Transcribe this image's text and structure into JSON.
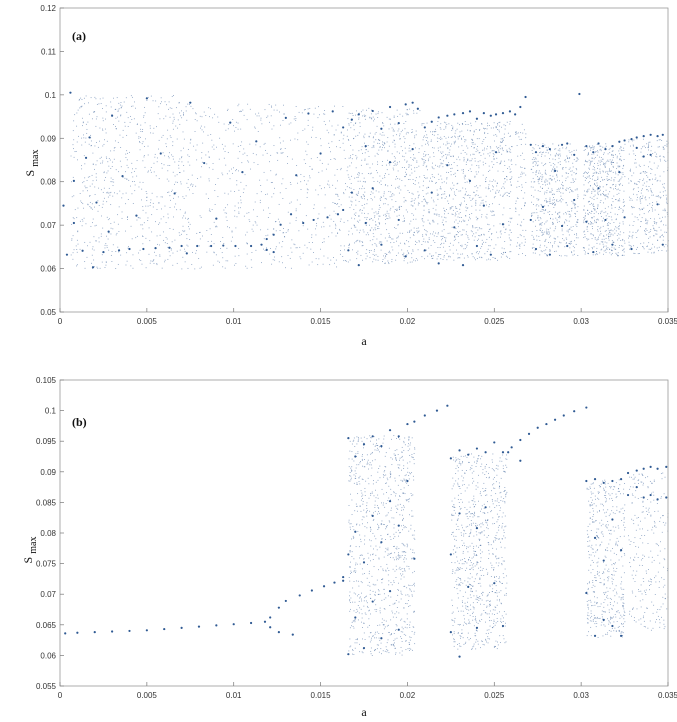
{
  "chart_data": [
    {
      "type": "scatter",
      "panel_label": "(a)",
      "xlabel": "a",
      "ylabel": "S",
      "ylabel_sub": "max",
      "xlim": [
        0,
        0.035
      ],
      "ylim": [
        0.05,
        0.12
      ],
      "xticks": [
        "0",
        "0.005",
        "0.01",
        "0.015",
        "0.02",
        "0.025",
        "0.03",
        "0.035"
      ],
      "yticks": [
        "0.05",
        "0.06",
        "0.07",
        "0.08",
        "0.09",
        "0.1",
        "0.11",
        "0.12"
      ],
      "color": "#2f5a93",
      "series": [
        {
          "values": [
            [
              0.0002,
              0.0745
            ],
            [
              0.0004,
              0.0632
            ],
            [
              0.0006,
              0.1005
            ],
            [
              0.0008,
              0.0705
            ],
            [
              0.0008,
              0.0802
            ],
            [
              0.0013,
              0.0641
            ],
            [
              0.0015,
              0.0855
            ],
            [
              0.0017,
              0.0902
            ],
            [
              0.0019,
              0.0603
            ],
            [
              0.0021,
              0.0752
            ],
            [
              0.0025,
              0.0638
            ],
            [
              0.0028,
              0.0685
            ],
            [
              0.003,
              0.0952
            ],
            [
              0.0034,
              0.0642
            ],
            [
              0.0036,
              0.0813
            ],
            [
              0.004,
              0.0645
            ],
            [
              0.0044,
              0.0722
            ],
            [
              0.0048,
              0.0645
            ],
            [
              0.005,
              0.0992
            ],
            [
              0.0055,
              0.0647
            ],
            [
              0.0058,
              0.0865
            ],
            [
              0.0063,
              0.0648
            ],
            [
              0.0066,
              0.0773
            ],
            [
              0.007,
              0.0652
            ],
            [
              0.0073,
              0.0635
            ],
            [
              0.0075,
              0.0982
            ],
            [
              0.0079,
              0.0652
            ],
            [
              0.0083,
              0.0843
            ],
            [
              0.0087,
              0.0652
            ],
            [
              0.009,
              0.0715
            ],
            [
              0.0094,
              0.0653
            ],
            [
              0.0098,
              0.0936
            ],
            [
              0.0101,
              0.0652
            ],
            [
              0.0105,
              0.0822
            ],
            [
              0.011,
              0.0652
            ],
            [
              0.0113,
              0.0893
            ],
            [
              0.0116,
              0.0655
            ],
            [
              0.0119,
              0.0668
            ],
            [
              0.0119,
              0.0643
            ],
            [
              0.0123,
              0.0678
            ],
            [
              0.0123,
              0.0638
            ],
            [
              0.0127,
              0.0701
            ],
            [
              0.013,
              0.0947
            ],
            [
              0.0133,
              0.0725
            ],
            [
              0.0136,
              0.0815
            ],
            [
              0.014,
              0.0705
            ],
            [
              0.0143,
              0.0957
            ],
            [
              0.0146,
              0.0712
            ],
            [
              0.015,
              0.0865
            ],
            [
              0.0154,
              0.0718
            ],
            [
              0.0157,
              0.0962
            ],
            [
              0.016,
              0.0725
            ],
            [
              0.0163,
              0.0925
            ],
            [
              0.0163,
              0.0735
            ],
            [
              0.0166,
              0.0642
            ],
            [
              0.0168,
              0.0943
            ],
            [
              0.0168,
              0.0775
            ],
            [
              0.0172,
              0.0955
            ],
            [
              0.0172,
              0.0608
            ],
            [
              0.0176,
              0.0882
            ],
            [
              0.0176,
              0.0705
            ],
            [
              0.018,
              0.0963
            ],
            [
              0.018,
              0.0785
            ],
            [
              0.0185,
              0.0922
            ],
            [
              0.0185,
              0.0655
            ],
            [
              0.019,
              0.0972
            ],
            [
              0.019,
              0.0845
            ],
            [
              0.0195,
              0.0935
            ],
            [
              0.0195,
              0.0712
            ],
            [
              0.0199,
              0.0978
            ],
            [
              0.0199,
              0.0628
            ],
            [
              0.0203,
              0.0982
            ],
            [
              0.0203,
              0.0875
            ],
            [
              0.0206,
              0.0968
            ],
            [
              0.021,
              0.0925
            ],
            [
              0.021,
              0.0642
            ],
            [
              0.0214,
              0.0938
            ],
            [
              0.0214,
              0.0775
            ],
            [
              0.0218,
              0.0948
            ],
            [
              0.0218,
              0.0612
            ],
            [
              0.0223,
              0.0952
            ],
            [
              0.0223,
              0.0838
            ],
            [
              0.0227,
              0.0955
            ],
            [
              0.0227,
              0.0695
            ],
            [
              0.0232,
              0.0958
            ],
            [
              0.0232,
              0.0608
            ],
            [
              0.0236,
              0.0962
            ],
            [
              0.0236,
              0.0802
            ],
            [
              0.024,
              0.0945
            ],
            [
              0.024,
              0.0652
            ],
            [
              0.0244,
              0.0958
            ],
            [
              0.0244,
              0.0745
            ],
            [
              0.0248,
              0.0952
            ],
            [
              0.0248,
              0.0632
            ],
            [
              0.0251,
              0.0955
            ],
            [
              0.0251,
              0.0868
            ],
            [
              0.0255,
              0.0958
            ],
            [
              0.0255,
              0.0702
            ],
            [
              0.0259,
              0.0962
            ],
            [
              0.0262,
              0.0955
            ],
            [
              0.0265,
              0.0972
            ],
            [
              0.0268,
              0.0995
            ],
            [
              0.0271,
              0.0885
            ],
            [
              0.0271,
              0.0712
            ],
            [
              0.0274,
              0.0868
            ],
            [
              0.0274,
              0.0645
            ],
            [
              0.0278,
              0.0882
            ],
            [
              0.0278,
              0.0742
            ],
            [
              0.0282,
              0.0875
            ],
            [
              0.0282,
              0.0632
            ],
            [
              0.0285,
              0.0825
            ],
            [
              0.0289,
              0.0885
            ],
            [
              0.0289,
              0.0698
            ],
            [
              0.0292,
              0.0888
            ],
            [
              0.0292,
              0.0652
            ],
            [
              0.0296,
              0.0862
            ],
            [
              0.0296,
              0.0758
            ],
            [
              0.0299,
              0.1002
            ],
            [
              0.0303,
              0.0882
            ],
            [
              0.0303,
              0.0708
            ],
            [
              0.0307,
              0.0868
            ],
            [
              0.0307,
              0.0638
            ],
            [
              0.031,
              0.0888
            ],
            [
              0.031,
              0.0785
            ],
            [
              0.0314,
              0.0875
            ],
            [
              0.0314,
              0.0712
            ],
            [
              0.0318,
              0.0882
            ],
            [
              0.0318,
              0.0655
            ],
            [
              0.0322,
              0.0892
            ],
            [
              0.0322,
              0.0822
            ],
            [
              0.0325,
              0.0895
            ],
            [
              0.0325,
              0.0718
            ],
            [
              0.0329,
              0.0898
            ],
            [
              0.0329,
              0.0645
            ],
            [
              0.0332,
              0.0902
            ],
            [
              0.0332,
              0.0878
            ],
            [
              0.0336,
              0.0905
            ],
            [
              0.0336,
              0.0858
            ],
            [
              0.034,
              0.0908
            ],
            [
              0.034,
              0.0862
            ],
            [
              0.0344,
              0.0905
            ],
            [
              0.0344,
              0.0748
            ],
            [
              0.0347,
              0.0908
            ],
            [
              0.0347,
              0.0655
            ]
          ]
        }
      ]
    },
    {
      "type": "scatter",
      "panel_label": "(b)",
      "xlabel": "a",
      "ylabel": "S",
      "ylabel_sub": "max",
      "xlim": [
        0,
        0.035
      ],
      "ylim": [
        0.055,
        0.105
      ],
      "xticks": [
        "0",
        "0.005",
        "0.01",
        "0.015",
        "0.02",
        "0.025",
        "0.03",
        "0.035"
      ],
      "yticks": [
        "0.055",
        "0.06",
        "0.065",
        "0.07",
        "0.075",
        "0.08",
        "0.085",
        "0.09",
        "0.095",
        "0.1",
        "0.105"
      ],
      "color": "#2f5a93",
      "series": [
        {
          "values": [
            [
              0.0003,
              0.0636
            ],
            [
              0.001,
              0.0637
            ],
            [
              0.002,
              0.0638
            ],
            [
              0.003,
              0.0639
            ],
            [
              0.004,
              0.064
            ],
            [
              0.005,
              0.0641
            ],
            [
              0.006,
              0.0643
            ],
            [
              0.007,
              0.0645
            ],
            [
              0.008,
              0.0647
            ],
            [
              0.009,
              0.0649
            ],
            [
              0.01,
              0.0651
            ],
            [
              0.011,
              0.0653
            ],
            [
              0.0118,
              0.0655
            ],
            [
              0.0121,
              0.0662
            ],
            [
              0.0121,
              0.0646
            ],
            [
              0.0126,
              0.0678
            ],
            [
              0.0126,
              0.0638
            ],
            [
              0.013,
              0.0689
            ],
            [
              0.0134,
              0.0634
            ],
            [
              0.0138,
              0.0698
            ],
            [
              0.0145,
              0.0706
            ],
            [
              0.0152,
              0.0713
            ],
            [
              0.0158,
              0.0719
            ],
            [
              0.0163,
              0.0728
            ],
            [
              0.0163,
              0.0722
            ],
            [
              0.0166,
              0.0955
            ],
            [
              0.0166,
              0.0765
            ],
            [
              0.0166,
              0.0602
            ],
            [
              0.017,
              0.0925
            ],
            [
              0.017,
              0.0802
            ],
            [
              0.017,
              0.0662
            ],
            [
              0.0175,
              0.0945
            ],
            [
              0.0175,
              0.0752
            ],
            [
              0.0175,
              0.0612
            ],
            [
              0.018,
              0.0958
            ],
            [
              0.018,
              0.0828
            ],
            [
              0.018,
              0.0688
            ],
            [
              0.0185,
              0.0942
            ],
            [
              0.0185,
              0.0785
            ],
            [
              0.0185,
              0.0628
            ],
            [
              0.019,
              0.0968
            ],
            [
              0.019,
              0.0852
            ],
            [
              0.019,
              0.0705
            ],
            [
              0.0195,
              0.0958
            ],
            [
              0.0195,
              0.0812
            ],
            [
              0.0195,
              0.0642
            ],
            [
              0.02,
              0.0978
            ],
            [
              0.02,
              0.0885
            ],
            [
              0.0204,
              0.0982
            ],
            [
              0.0204,
              0.0758
            ],
            [
              0.021,
              0.0992
            ],
            [
              0.0217,
              0.1
            ],
            [
              0.0223,
              0.1008
            ],
            [
              0.0225,
              0.0922
            ],
            [
              0.0225,
              0.0765
            ],
            [
              0.0225,
              0.0638
            ],
            [
              0.023,
              0.0935
            ],
            [
              0.023,
              0.0832
            ],
            [
              0.023,
              0.0598
            ],
            [
              0.0235,
              0.0928
            ],
            [
              0.0235,
              0.0712
            ],
            [
              0.024,
              0.0938
            ],
            [
              0.024,
              0.0808
            ],
            [
              0.024,
              0.0645
            ],
            [
              0.0245,
              0.0932
            ],
            [
              0.0245,
              0.0842
            ],
            [
              0.025,
              0.0948
            ],
            [
              0.025,
              0.0718
            ],
            [
              0.0255,
              0.0932
            ],
            [
              0.0255,
              0.0648
            ],
            [
              0.0258,
              0.0932
            ],
            [
              0.026,
              0.094
            ],
            [
              0.0265,
              0.0952
            ],
            [
              0.0265,
              0.0918
            ],
            [
              0.027,
              0.0962
            ],
            [
              0.0275,
              0.0972
            ],
            [
              0.028,
              0.0978
            ],
            [
              0.0285,
              0.0985
            ],
            [
              0.029,
              0.0992
            ],
            [
              0.0296,
              0.0999
            ],
            [
              0.0303,
              0.1005
            ],
            [
              0.0303,
              0.0885
            ],
            [
              0.0303,
              0.0702
            ],
            [
              0.0308,
              0.0888
            ],
            [
              0.0308,
              0.0792
            ],
            [
              0.0308,
              0.0632
            ],
            [
              0.0313,
              0.0882
            ],
            [
              0.0313,
              0.0755
            ],
            [
              0.0313,
              0.0658
            ],
            [
              0.0318,
              0.0885
            ],
            [
              0.0318,
              0.0822
            ],
            [
              0.0318,
              0.0648
            ],
            [
              0.0323,
              0.0888
            ],
            [
              0.0323,
              0.0772
            ],
            [
              0.0323,
              0.0632
            ],
            [
              0.0327,
              0.0898
            ],
            [
              0.0327,
              0.0862
            ],
            [
              0.0332,
              0.0902
            ],
            [
              0.0332,
              0.0875
            ],
            [
              0.0336,
              0.0905
            ],
            [
              0.0336,
              0.0858
            ],
            [
              0.034,
              0.0908
            ],
            [
              0.034,
              0.0862
            ],
            [
              0.0344,
              0.0905
            ],
            [
              0.0344,
              0.0855
            ],
            [
              0.0349,
              0.0908
            ],
            [
              0.0349,
              0.0858
            ]
          ]
        }
      ]
    }
  ]
}
